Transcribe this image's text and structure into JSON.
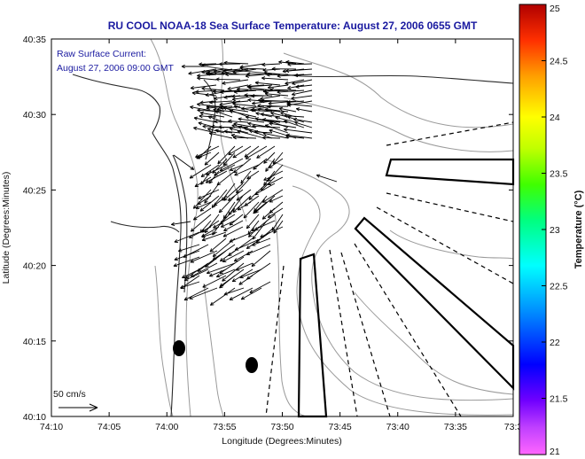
{
  "title": "RU COOL  NOAA-18  Sea Surface Temperature:  August 27, 2006 0655 GMT",
  "xaxis": {
    "label": "Longitude (Degrees:Minutes)",
    "ticks": [
      "74:10",
      "74:05",
      "74:00",
      "73:55",
      "73:50",
      "73:45",
      "73:40",
      "73:35",
      "73:3"
    ]
  },
  "yaxis": {
    "label": "Latitude (Degrees:Minutes)",
    "ticks": [
      "40:35",
      "40:30",
      "40:25",
      "40:20",
      "40:15",
      "40:10"
    ]
  },
  "annotation": {
    "line1": "Raw Surface Current:",
    "line2": "August 27, 2006 09:00 GMT"
  },
  "scale_label": "50 cm/s",
  "colorbar": {
    "label": "Temperature (°C)",
    "ticks": [
      "25",
      "24.5",
      "24",
      "23.5",
      "23",
      "22.5",
      "22",
      "21.5",
      "21"
    ]
  },
  "colors": {
    "title": "#1a1aa0",
    "contour": "#9a9a9a",
    "coast": "#2a2a2a",
    "vector": "#000000"
  }
}
